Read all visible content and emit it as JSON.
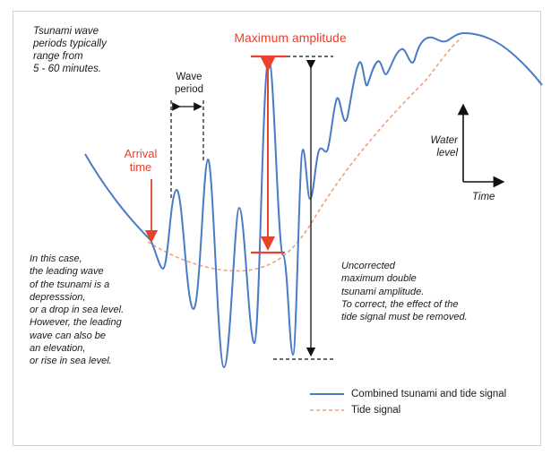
{
  "periods_note": "Tsunami wave\nperiods typically\nrange from\n5 - 60 minutes.",
  "wave_period_label": "Wave\nperiod",
  "max_amplitude_label": "Maximum amplitude",
  "arrival_time_label": "Arrival\ntime",
  "axes_key": {
    "y_label": "Water\nlevel",
    "x_label": "Time"
  },
  "leading_wave_note": "In this case,\nthe leading wave\nof the tsunami is a\ndepresssion,\nor a drop in sea level.\nHowever, the leading\nwave can also be\nan elevation,\nor rise in sea level.",
  "uncorrected_note": "Uncorrected\nmaximum double\ntsunami amplitude.\nTo correct, the effect of the\ntide signal must be removed.",
  "legend": [
    {
      "label": "Combined tsunami and tide signal",
      "color": "#4a7bc4",
      "style": "solid"
    },
    {
      "label": "Tide signal",
      "color": "#f0a07a",
      "style": "dashed"
    }
  ],
  "colors": {
    "accent": "#e8412c",
    "signal": "#4a7bc4",
    "tide": "#f0a07a"
  }
}
